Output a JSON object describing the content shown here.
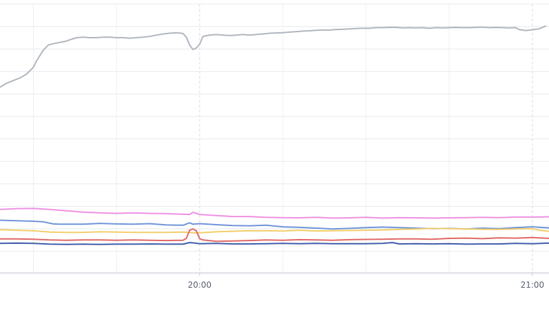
{
  "chart_data": {
    "type": "line",
    "title": "",
    "xlabel": "",
    "ylabel": "",
    "x_ticks": [
      {
        "label": "20:00",
        "t": 20.0
      },
      {
        "label": "21:00",
        "t": 21.0
      }
    ],
    "xlim": [
      19.4,
      21.05
    ],
    "ylim": [
      0,
      100
    ],
    "grid": true,
    "legend": "none",
    "series": [
      {
        "color": "#b0b6bd",
        "points": [
          [
            19.4,
            70.0
          ],
          [
            19.42,
            71.5
          ],
          [
            19.44,
            72.5
          ],
          [
            19.46,
            73.5
          ],
          [
            19.48,
            75.0
          ],
          [
            19.5,
            77.5
          ],
          [
            19.51,
            80.0
          ],
          [
            19.53,
            84.0
          ],
          [
            19.545,
            86.0
          ],
          [
            19.56,
            86.5
          ],
          [
            19.58,
            87.0
          ],
          [
            19.6,
            87.5
          ],
          [
            19.61,
            88.0
          ],
          [
            19.63,
            88.8
          ],
          [
            19.65,
            89.0
          ],
          [
            19.67,
            88.8
          ],
          [
            19.69,
            88.8
          ],
          [
            19.71,
            89.0
          ],
          [
            19.73,
            89.0
          ],
          [
            19.75,
            88.8
          ],
          [
            19.77,
            88.8
          ],
          [
            19.79,
            88.6
          ],
          [
            19.81,
            88.8
          ],
          [
            19.83,
            89.0
          ],
          [
            19.85,
            89.3
          ],
          [
            19.87,
            89.8
          ],
          [
            19.89,
            90.2
          ],
          [
            19.91,
            90.5
          ],
          [
            19.93,
            90.7
          ],
          [
            19.95,
            90.4
          ],
          [
            19.96,
            89.0
          ],
          [
            19.97,
            86.0
          ],
          [
            19.98,
            84.3
          ],
          [
            19.99,
            84.9
          ],
          [
            20.0,
            86.3
          ],
          [
            20.01,
            89.3
          ],
          [
            20.03,
            89.8
          ],
          [
            20.05,
            90.0
          ],
          [
            20.07,
            89.8
          ],
          [
            20.09,
            89.6
          ],
          [
            20.11,
            89.8
          ],
          [
            20.13,
            90.0
          ],
          [
            20.15,
            89.8
          ],
          [
            20.17,
            90.0
          ],
          [
            20.19,
            90.2
          ],
          [
            20.21,
            90.5
          ],
          [
            20.23,
            90.6
          ],
          [
            20.25,
            90.7
          ],
          [
            20.27,
            90.9
          ],
          [
            20.29,
            91.1
          ],
          [
            20.31,
            91.3
          ],
          [
            20.33,
            91.4
          ],
          [
            20.35,
            91.6
          ],
          [
            20.37,
            91.7
          ],
          [
            20.39,
            91.7
          ],
          [
            20.41,
            91.9
          ],
          [
            20.43,
            92.0
          ],
          [
            20.45,
            92.1
          ],
          [
            20.47,
            92.3
          ],
          [
            20.49,
            92.4
          ],
          [
            20.51,
            92.4
          ],
          [
            20.53,
            92.6
          ],
          [
            20.55,
            92.6
          ],
          [
            20.57,
            92.7
          ],
          [
            20.59,
            92.7
          ],
          [
            20.61,
            92.5
          ],
          [
            20.63,
            92.6
          ],
          [
            20.65,
            92.5
          ],
          [
            20.67,
            92.6
          ],
          [
            20.69,
            92.4
          ],
          [
            20.71,
            92.6
          ],
          [
            20.73,
            92.5
          ],
          [
            20.75,
            92.6
          ],
          [
            20.77,
            92.7
          ],
          [
            20.79,
            92.6
          ],
          [
            20.81,
            92.6
          ],
          [
            20.83,
            92.7
          ],
          [
            20.85,
            92.8
          ],
          [
            20.87,
            92.6
          ],
          [
            20.89,
            92.7
          ],
          [
            20.91,
            92.6
          ],
          [
            20.93,
            92.5
          ],
          [
            20.95,
            92.6
          ],
          [
            20.96,
            91.9
          ],
          [
            20.98,
            91.5
          ],
          [
            21.0,
            91.8
          ],
          [
            21.02,
            92.2
          ],
          [
            21.04,
            93.2
          ]
        ]
      },
      {
        "color": "#ee90e2",
        "points": [
          [
            19.4,
            23.5
          ],
          [
            19.45,
            23.8
          ],
          [
            19.5,
            23.9
          ],
          [
            19.55,
            23.5
          ],
          [
            19.6,
            23.0
          ],
          [
            19.65,
            22.5
          ],
          [
            19.7,
            22.2
          ],
          [
            19.75,
            22.0
          ],
          [
            19.8,
            22.2
          ],
          [
            19.85,
            22.0
          ],
          [
            19.9,
            21.9
          ],
          [
            19.95,
            21.7
          ],
          [
            19.97,
            21.6
          ],
          [
            19.98,
            22.4
          ],
          [
            19.99,
            22.0
          ],
          [
            20.0,
            21.6
          ],
          [
            20.05,
            21.2
          ],
          [
            20.1,
            20.8
          ],
          [
            20.15,
            20.8
          ],
          [
            20.2,
            20.5
          ],
          [
            20.25,
            20.4
          ],
          [
            20.3,
            20.3
          ],
          [
            20.35,
            20.5
          ],
          [
            20.4,
            20.2
          ],
          [
            20.45,
            20.3
          ],
          [
            20.5,
            20.5
          ],
          [
            20.55,
            20.2
          ],
          [
            20.6,
            20.4
          ],
          [
            20.65,
            20.3
          ],
          [
            20.7,
            20.2
          ],
          [
            20.75,
            20.3
          ],
          [
            20.8,
            20.4
          ],
          [
            20.85,
            20.5
          ],
          [
            20.9,
            20.4
          ],
          [
            20.95,
            20.6
          ],
          [
            21.0,
            20.6
          ],
          [
            21.05,
            20.7
          ]
        ]
      },
      {
        "color": "#6e94d8",
        "points": [
          [
            19.4,
            19.4
          ],
          [
            19.45,
            19.2
          ],
          [
            19.5,
            19.0
          ],
          [
            19.53,
            18.8
          ],
          [
            19.56,
            18.0
          ],
          [
            19.58,
            17.9
          ],
          [
            19.6,
            17.9
          ],
          [
            19.65,
            17.9
          ],
          [
            19.7,
            18.2
          ],
          [
            19.75,
            18.0
          ],
          [
            19.8,
            17.9
          ],
          [
            19.85,
            18.1
          ],
          [
            19.9,
            17.6
          ],
          [
            19.95,
            17.5
          ],
          [
            19.97,
            18.4
          ],
          [
            19.98,
            17.9
          ],
          [
            20.0,
            18.1
          ],
          [
            20.05,
            17.7
          ],
          [
            20.1,
            17.4
          ],
          [
            20.15,
            17.3
          ],
          [
            20.2,
            17.5
          ],
          [
            20.25,
            16.9
          ],
          [
            20.3,
            16.7
          ],
          [
            20.35,
            16.4
          ],
          [
            20.4,
            16.1
          ],
          [
            20.45,
            16.3
          ],
          [
            20.5,
            16.6
          ],
          [
            20.55,
            16.8
          ],
          [
            20.6,
            16.6
          ],
          [
            20.65,
            16.4
          ],
          [
            20.7,
            16.2
          ],
          [
            20.75,
            16.3
          ],
          [
            20.8,
            16.1
          ],
          [
            20.85,
            16.4
          ],
          [
            20.9,
            16.2
          ],
          [
            20.95,
            16.6
          ],
          [
            21.0,
            16.9
          ],
          [
            21.05,
            16.5
          ]
        ]
      },
      {
        "color": "#f2cd69",
        "points": [
          [
            19.4,
            15.8
          ],
          [
            19.45,
            15.6
          ],
          [
            19.5,
            15.4
          ],
          [
            19.55,
            14.9
          ],
          [
            19.6,
            14.8
          ],
          [
            19.65,
            14.8
          ],
          [
            19.7,
            15.0
          ],
          [
            19.75,
            14.9
          ],
          [
            19.8,
            14.8
          ],
          [
            19.85,
            14.8
          ],
          [
            19.9,
            14.8
          ],
          [
            19.95,
            14.9
          ],
          [
            19.98,
            14.6
          ],
          [
            20.0,
            14.6
          ],
          [
            20.05,
            15.0
          ],
          [
            20.1,
            15.2
          ],
          [
            20.15,
            15.4
          ],
          [
            20.2,
            15.4
          ],
          [
            20.25,
            15.3
          ],
          [
            20.3,
            15.6
          ],
          [
            20.35,
            15.3
          ],
          [
            20.4,
            15.4
          ],
          [
            20.45,
            15.5
          ],
          [
            20.5,
            15.6
          ],
          [
            20.55,
            15.7
          ],
          [
            20.6,
            15.9
          ],
          [
            20.65,
            16.1
          ],
          [
            20.7,
            16.3
          ],
          [
            20.75,
            16.2
          ],
          [
            20.8,
            16.1
          ],
          [
            20.85,
            16.0
          ],
          [
            20.9,
            15.9
          ],
          [
            20.95,
            16.1
          ],
          [
            21.0,
            16.2
          ],
          [
            21.02,
            15.6
          ],
          [
            21.05,
            15.2
          ]
        ]
      },
      {
        "color": "#e06666",
        "points": [
          [
            19.4,
            12.3
          ],
          [
            19.45,
            12.3
          ],
          [
            19.5,
            12.2
          ],
          [
            19.55,
            11.9
          ],
          [
            19.6,
            11.8
          ],
          [
            19.65,
            11.9
          ],
          [
            19.7,
            11.9
          ],
          [
            19.75,
            11.8
          ],
          [
            19.8,
            11.9
          ],
          [
            19.85,
            11.8
          ],
          [
            19.9,
            11.7
          ],
          [
            19.95,
            11.8
          ],
          [
            19.96,
            12.5
          ],
          [
            19.97,
            15.6
          ],
          [
            19.98,
            16.1
          ],
          [
            19.99,
            15.4
          ],
          [
            20.0,
            12.4
          ],
          [
            20.01,
            11.9
          ],
          [
            20.05,
            11.4
          ],
          [
            20.1,
            11.5
          ],
          [
            20.15,
            11.7
          ],
          [
            20.2,
            11.9
          ],
          [
            20.25,
            11.8
          ],
          [
            20.3,
            12.0
          ],
          [
            20.35,
            11.9
          ],
          [
            20.4,
            11.8
          ],
          [
            20.45,
            12.0
          ],
          [
            20.5,
            12.1
          ],
          [
            20.55,
            12.2
          ],
          [
            20.6,
            12.3
          ],
          [
            20.65,
            12.3
          ],
          [
            20.7,
            12.2
          ],
          [
            20.75,
            12.5
          ],
          [
            20.8,
            12.6
          ],
          [
            20.85,
            12.4
          ],
          [
            20.9,
            12.7
          ],
          [
            20.95,
            12.6
          ],
          [
            21.0,
            12.8
          ],
          [
            21.05,
            12.5
          ]
        ]
      },
      {
        "color": "#3f5baa",
        "points": [
          [
            19.4,
            10.6
          ],
          [
            19.45,
            10.7
          ],
          [
            19.5,
            10.6
          ],
          [
            19.55,
            10.3
          ],
          [
            19.6,
            10.2
          ],
          [
            19.65,
            10.3
          ],
          [
            19.7,
            10.2
          ],
          [
            19.75,
            10.3
          ],
          [
            19.8,
            10.3
          ],
          [
            19.85,
            10.4
          ],
          [
            19.9,
            10.3
          ],
          [
            19.95,
            10.3
          ],
          [
            19.97,
            10.9
          ],
          [
            19.98,
            10.8
          ],
          [
            20.0,
            10.5
          ],
          [
            20.05,
            10.6
          ],
          [
            20.1,
            10.4
          ],
          [
            20.15,
            10.4
          ],
          [
            20.2,
            10.5
          ],
          [
            20.25,
            10.6
          ],
          [
            20.3,
            10.5
          ],
          [
            20.35,
            10.6
          ],
          [
            20.4,
            10.5
          ],
          [
            20.45,
            10.5
          ],
          [
            20.5,
            10.5
          ],
          [
            20.55,
            10.6
          ],
          [
            20.58,
            10.9
          ],
          [
            20.6,
            10.4
          ],
          [
            20.65,
            10.5
          ],
          [
            20.7,
            10.4
          ],
          [
            20.75,
            10.5
          ],
          [
            20.8,
            10.3
          ],
          [
            20.85,
            10.4
          ],
          [
            20.9,
            10.4
          ],
          [
            20.95,
            10.6
          ],
          [
            21.0,
            10.5
          ],
          [
            21.05,
            10.7
          ]
        ]
      }
    ]
  }
}
